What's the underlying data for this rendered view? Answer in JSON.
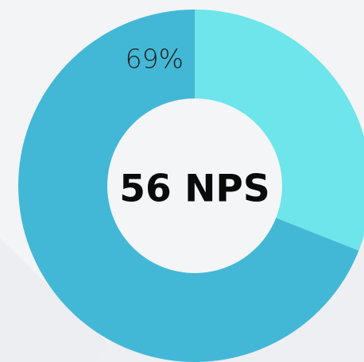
{
  "chart_data": {
    "type": "donut",
    "center_label": "56 NPS",
    "categories": [
      null,
      null
    ],
    "values": [
      31,
      69
    ],
    "value_labels": [
      null,
      "69%"
    ],
    "colors": [
      "#6de5ea",
      "#43b8d6"
    ]
  }
}
